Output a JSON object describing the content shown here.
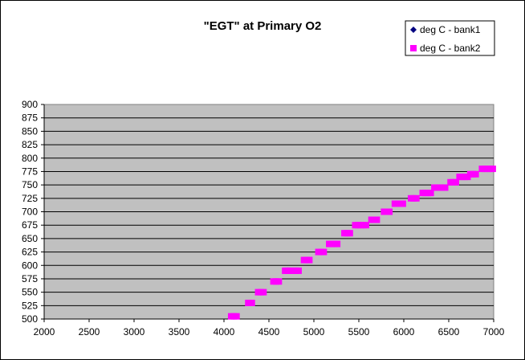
{
  "chart_data": {
    "type": "scatter",
    "title": "\"EGT\" at Primary O2",
    "xlabel": "",
    "ylabel": "",
    "xlim": [
      2000,
      7000
    ],
    "ylim": [
      500,
      900
    ],
    "x_ticks": [
      2000,
      2500,
      3000,
      3500,
      4000,
      4500,
      5000,
      5500,
      6000,
      6500,
      7000
    ],
    "y_ticks": [
      500,
      525,
      550,
      575,
      600,
      625,
      650,
      675,
      700,
      725,
      750,
      775,
      800,
      825,
      850,
      875,
      900
    ],
    "grid": "horizontal",
    "plot_background": "#c0c0c0",
    "legend_position": "top-right",
    "series": [
      {
        "name": "deg C - bank1",
        "marker": "diamond",
        "color": "#000080",
        "points": []
      },
      {
        "name": "deg C - bank2",
        "marker": "square",
        "color": "#ff00ff",
        "points": [
          [
            4080,
            505
          ],
          [
            4110,
            505
          ],
          [
            4140,
            505
          ],
          [
            4270,
            530
          ],
          [
            4290,
            530
          ],
          [
            4310,
            530
          ],
          [
            4380,
            550
          ],
          [
            4410,
            550
          ],
          [
            4440,
            550
          ],
          [
            4550,
            570
          ],
          [
            4580,
            570
          ],
          [
            4610,
            570
          ],
          [
            4680,
            590
          ],
          [
            4710,
            590
          ],
          [
            4740,
            590
          ],
          [
            4770,
            590
          ],
          [
            4800,
            590
          ],
          [
            4830,
            590
          ],
          [
            4890,
            610
          ],
          [
            4920,
            610
          ],
          [
            4950,
            610
          ],
          [
            5050,
            625
          ],
          [
            5080,
            625
          ],
          [
            5110,
            625
          ],
          [
            5170,
            640
          ],
          [
            5200,
            640
          ],
          [
            5230,
            640
          ],
          [
            5260,
            640
          ],
          [
            5340,
            660
          ],
          [
            5370,
            660
          ],
          [
            5400,
            660
          ],
          [
            5460,
            675
          ],
          [
            5490,
            675
          ],
          [
            5520,
            675
          ],
          [
            5550,
            675
          ],
          [
            5580,
            675
          ],
          [
            5640,
            685
          ],
          [
            5670,
            685
          ],
          [
            5700,
            685
          ],
          [
            5780,
            700
          ],
          [
            5810,
            700
          ],
          [
            5840,
            700
          ],
          [
            5900,
            715
          ],
          [
            5930,
            715
          ],
          [
            5960,
            715
          ],
          [
            5990,
            715
          ],
          [
            6080,
            725
          ],
          [
            6110,
            725
          ],
          [
            6140,
            725
          ],
          [
            6210,
            735
          ],
          [
            6240,
            735
          ],
          [
            6270,
            735
          ],
          [
            6300,
            735
          ],
          [
            6340,
            745
          ],
          [
            6370,
            745
          ],
          [
            6400,
            745
          ],
          [
            6430,
            745
          ],
          [
            6460,
            745
          ],
          [
            6520,
            755
          ],
          [
            6550,
            755
          ],
          [
            6580,
            755
          ],
          [
            6620,
            765
          ],
          [
            6650,
            765
          ],
          [
            6680,
            765
          ],
          [
            6710,
            765
          ],
          [
            6740,
            770
          ],
          [
            6770,
            770
          ],
          [
            6800,
            770
          ],
          [
            6870,
            780
          ],
          [
            6900,
            780
          ],
          [
            6930,
            780
          ],
          [
            6960,
            780
          ],
          [
            6990,
            780
          ]
        ]
      }
    ]
  }
}
